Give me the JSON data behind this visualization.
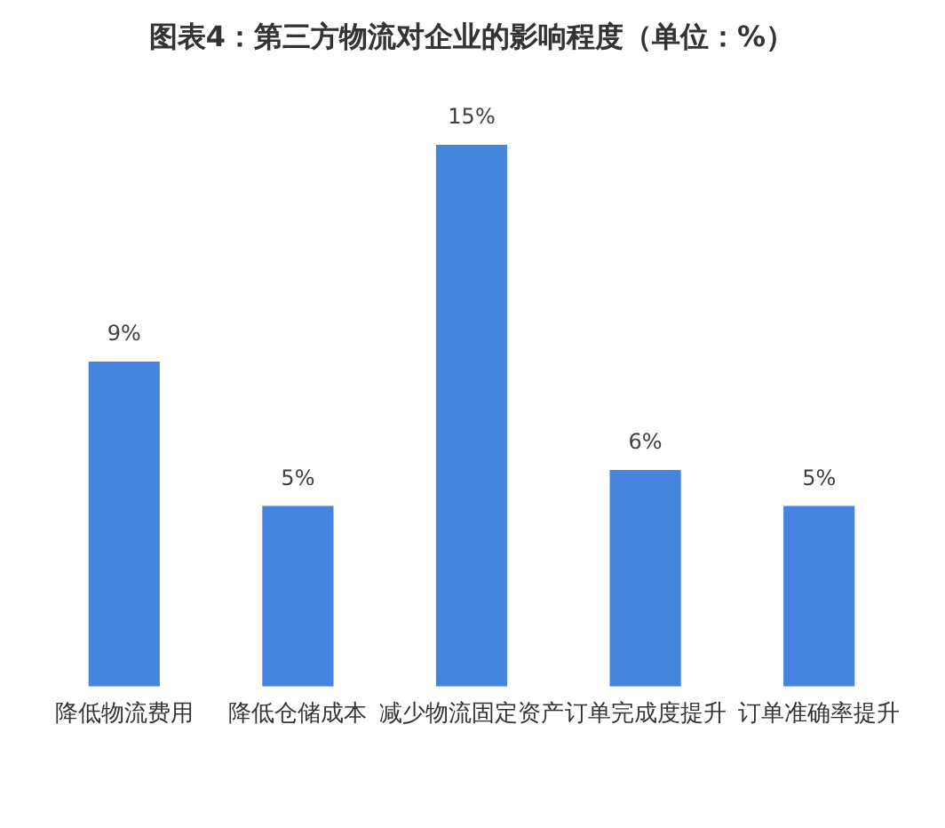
{
  "chart_data": {
    "type": "bar",
    "title": "图表4：第三方物流对企业的影响程度（单位：%）",
    "categories": [
      "降低物流费用",
      "降低仓储成本",
      "减少物流固定资产",
      "订单完成度提升",
      "订单准确率提升"
    ],
    "values": [
      9,
      5,
      15,
      6,
      5
    ],
    "color": "#4585dd",
    "value_labels": [
      "9%",
      "5%",
      "15%",
      "6%",
      "5%"
    ]
  }
}
